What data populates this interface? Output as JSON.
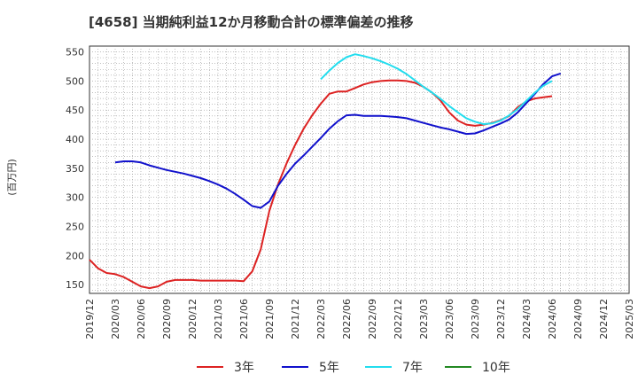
{
  "chart_data": {
    "type": "line",
    "title": "[4658]  当期純利益12か月移動合計の標準偏差の推移",
    "ylabel": "(百万円)",
    "xlabel": "",
    "ylim": [
      135,
      560
    ],
    "yticks": [
      150,
      200,
      250,
      300,
      350,
      400,
      450,
      500,
      550
    ],
    "xticks": [
      "2019/12",
      "2020/03",
      "2020/06",
      "2020/09",
      "2020/12",
      "2021/03",
      "2021/06",
      "2021/09",
      "2021/12",
      "2022/03",
      "2022/06",
      "2022/09",
      "2022/12",
      "2023/03",
      "2023/06",
      "2023/09",
      "2023/12",
      "2024/03",
      "2024/06",
      "2024/09",
      "2024/12",
      "2025/03"
    ],
    "grid": true,
    "legend_position": "bottom",
    "x_start": "2019/12",
    "series": [
      {
        "name": "3年",
        "color": "#dd2222",
        "start_index": 0,
        "values": [
          193,
          178,
          170,
          168,
          163,
          155,
          147,
          144,
          147,
          155,
          158,
          158,
          158,
          157,
          157,
          157,
          157,
          157,
          156,
          173,
          211,
          277,
          322,
          358,
          390,
          418,
          441,
          461,
          478,
          482,
          482,
          488,
          494,
          498,
          500,
          501,
          501,
          500,
          497,
          490,
          480,
          466,
          446,
          432,
          425,
          423,
          425,
          428,
          433,
          440,
          455,
          465,
          470,
          472,
          474
        ]
      },
      {
        "name": "5年",
        "color": "#1111cc",
        "start_index": 3,
        "values": [
          360,
          362,
          362,
          360,
          355,
          351,
          347,
          344,
          341,
          337,
          333,
          328,
          322,
          315,
          306,
          296,
          285,
          282,
          293,
          320,
          340,
          358,
          372,
          387,
          402,
          418,
          431,
          441,
          442,
          440,
          440,
          440,
          439,
          438,
          436,
          432,
          428,
          424,
          420,
          417,
          413,
          409,
          410,
          415,
          421,
          427,
          434,
          446,
          462,
          478,
          495,
          508,
          513
        ]
      },
      {
        "name": "7年",
        "color": "#22ddee",
        "start_index": 27,
        "values": [
          503,
          518,
          531,
          541,
          546,
          543,
          539,
          534,
          528,
          521,
          512,
          501,
          490,
          480,
          469,
          457,
          446,
          436,
          430,
          426,
          427,
          432,
          441,
          452,
          466,
          480,
          492,
          500
        ]
      },
      {
        "name": "10年",
        "color": "#228822",
        "start_index": 0,
        "values": []
      }
    ]
  }
}
